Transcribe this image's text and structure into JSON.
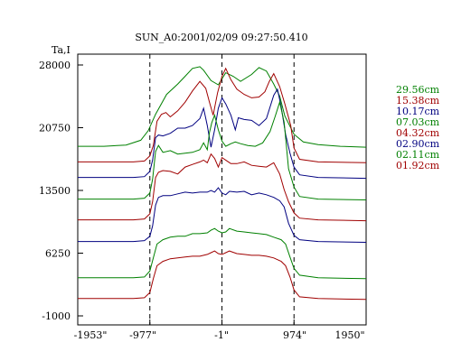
{
  "chart_data": {
    "type": "line",
    "title": "SUN_A0:2001/02/09 09:27:50.410",
    "ylabel": "Ta,I",
    "xlabel": "",
    "xlim": [
      -1953,
      1950
    ],
    "ylim": [
      -1000,
      28000
    ],
    "y_ticks": [
      {
        "value": 28000,
        "label": "28000"
      },
      {
        "value": 20750,
        "label": "20750"
      },
      {
        "value": 13500,
        "label": "13500"
      },
      {
        "value": 6250,
        "label": "6250"
      },
      {
        "value": -1000,
        "label": "-1000"
      }
    ],
    "x_ticks": [
      {
        "value": -1953,
        "label": "-1953\""
      },
      {
        "value": -977,
        "label": "-977\""
      },
      {
        "value": -1,
        "label": "-1\""
      },
      {
        "value": 974,
        "label": "974\""
      },
      {
        "value": 1950,
        "label": "1950\""
      }
    ],
    "vlines": [
      -977,
      -1,
      974
    ],
    "grid": false,
    "legend_position": "right",
    "series": [
      {
        "name": "29.56cm",
        "color": "#008000",
        "x": [
          -1953,
          -1600,
          -1300,
          -1100,
          -1000,
          -900,
          -750,
          -600,
          -500,
          -400,
          -300,
          -250,
          -150,
          -50,
          50,
          150,
          250,
          400,
          500,
          600,
          700,
          780,
          850,
          974,
          1100,
          1300,
          1600,
          1950
        ],
        "y": [
          18600,
          18600,
          18750,
          19300,
          20400,
          22300,
          24600,
          25800,
          26700,
          27600,
          27800,
          27400,
          26200,
          25700,
          27100,
          26700,
          26100,
          26900,
          27700,
          27300,
          25800,
          24400,
          22100,
          20000,
          19100,
          18800,
          18600,
          18500
        ]
      },
      {
        "name": "15.38cm",
        "color": "#a00000",
        "x": [
          -1953,
          -1200,
          -1050,
          -977,
          -930,
          -880,
          -820,
          -760,
          -700,
          -600,
          -500,
          -400,
          -300,
          -220,
          -170,
          -120,
          -60,
          0,
          50,
          120,
          200,
          300,
          400,
          500,
          580,
          640,
          700,
          780,
          850,
          930,
          974,
          1050,
          1300,
          1950
        ],
        "y": [
          16800,
          16800,
          16900,
          17500,
          18700,
          21500,
          22300,
          22500,
          22000,
          22700,
          23700,
          25000,
          26100,
          25300,
          23700,
          22200,
          24800,
          26700,
          27600,
          26300,
          25200,
          24600,
          24200,
          24300,
          24900,
          26100,
          27000,
          25500,
          23500,
          21000,
          18400,
          17100,
          16800,
          16700
        ]
      },
      {
        "name": "10.17cm",
        "color": "#000080",
        "x": [
          -1953,
          -1200,
          -1050,
          -977,
          -940,
          -900,
          -860,
          -800,
          -700,
          -600,
          -500,
          -400,
          -300,
          -250,
          -200,
          -150,
          -100,
          -50,
          0,
          50,
          120,
          180,
          220,
          300,
          400,
          500,
          600,
          700,
          750,
          800,
          860,
          920,
          974,
          1050,
          1300,
          1950
        ],
        "y": [
          15000,
          15000,
          15100,
          15700,
          17000,
          19600,
          19900,
          19800,
          20100,
          20700,
          20700,
          21000,
          21800,
          23000,
          21000,
          18500,
          20500,
          23000,
          24200,
          23500,
          22200,
          20500,
          21900,
          21700,
          21600,
          21000,
          21800,
          24500,
          25200,
          23200,
          20000,
          17800,
          16200,
          15300,
          15000,
          14900
        ]
      },
      {
        "name": "07.03cm",
        "color": "#008000",
        "x": [
          -1953,
          -1200,
          -1050,
          -977,
          -940,
          -900,
          -860,
          -800,
          -700,
          -600,
          -500,
          -400,
          -300,
          -250,
          -200,
          -170,
          -140,
          -100,
          -50,
          0,
          50,
          120,
          180,
          250,
          350,
          450,
          550,
          650,
          720,
          780,
          840,
          900,
          974,
          1050,
          1300,
          1950
        ],
        "y": [
          12500,
          12500,
          12600,
          13200,
          14800,
          18000,
          18700,
          17900,
          18100,
          17700,
          17800,
          17900,
          18200,
          19000,
          18200,
          20200,
          21300,
          22200,
          20500,
          19200,
          18600,
          18900,
          19100,
          18900,
          18700,
          18600,
          19000,
          20300,
          22100,
          23700,
          21400,
          16000,
          13900,
          12800,
          12500,
          12400
        ]
      },
      {
        "name": "04.32cm",
        "color": "#a00000",
        "x": [
          -1953,
          -1200,
          -1050,
          -977,
          -940,
          -900,
          -860,
          -800,
          -700,
          -600,
          -500,
          -400,
          -300,
          -250,
          -200,
          -150,
          -100,
          -50,
          0,
          50,
          120,
          200,
          300,
          400,
          500,
          600,
          700,
          780,
          840,
          900,
          974,
          1050,
          1300,
          1950
        ],
        "y": [
          10100,
          10100,
          10200,
          10800,
          12200,
          15000,
          15600,
          15800,
          15700,
          15400,
          16200,
          16500,
          16800,
          17000,
          16700,
          17700,
          17200,
          16200,
          17300,
          17000,
          16600,
          16600,
          16800,
          16400,
          16300,
          16200,
          16700,
          15400,
          13600,
          12200,
          10900,
          10300,
          10100,
          10000
        ]
      },
      {
        "name": "02.90cm",
        "color": "#000080",
        "x": [
          -1953,
          -1200,
          -1050,
          -977,
          -940,
          -900,
          -860,
          -800,
          -700,
          -600,
          -500,
          -400,
          -300,
          -200,
          -150,
          -100,
          -50,
          0,
          50,
          100,
          200,
          300,
          400,
          500,
          600,
          700,
          780,
          840,
          900,
          974,
          1050,
          1300,
          1950
        ],
        "y": [
          7600,
          7600,
          7700,
          8200,
          9400,
          11800,
          12700,
          12900,
          12900,
          13100,
          13300,
          13200,
          13300,
          13300,
          13500,
          13300,
          13800,
          13200,
          13000,
          13400,
          13300,
          13400,
          13000,
          13200,
          13000,
          12700,
          12300,
          11600,
          9700,
          8300,
          7800,
          7600,
          7500
        ]
      },
      {
        "name": "02.11cm",
        "color": "#008000",
        "x": [
          -1953,
          -1200,
          -1050,
          -977,
          -930,
          -880,
          -800,
          -700,
          -600,
          -500,
          -400,
          -300,
          -200,
          -150,
          -100,
          -50,
          0,
          50,
          100,
          200,
          300,
          400,
          500,
          600,
          700,
          800,
          860,
          920,
          974,
          1050,
          1300,
          1950
        ],
        "y": [
          3400,
          3400,
          3500,
          4200,
          5700,
          7300,
          7800,
          8100,
          8200,
          8200,
          8500,
          8500,
          8600,
          8900,
          9100,
          8800,
          8600,
          8700,
          9100,
          8800,
          8700,
          8600,
          8500,
          8400,
          8100,
          7800,
          7300,
          5800,
          4500,
          3700,
          3400,
          3300
        ]
      },
      {
        "name": "01.92cm",
        "color": "#a00000",
        "x": [
          -1953,
          -1200,
          -1050,
          -977,
          -930,
          -880,
          -800,
          -700,
          -600,
          -500,
          -400,
          -300,
          -200,
          -150,
          -100,
          -50,
          0,
          50,
          100,
          200,
          300,
          400,
          500,
          600,
          700,
          800,
          860,
          920,
          974,
          1050,
          1300,
          1950
        ],
        "y": [
          1000,
          1000,
          1100,
          1700,
          3300,
          4800,
          5300,
          5600,
          5700,
          5800,
          5900,
          5900,
          6100,
          6300,
          6500,
          6200,
          6100,
          6300,
          6500,
          6200,
          6100,
          6000,
          6000,
          5900,
          5700,
          5300,
          4800,
          3500,
          2000,
          1200,
          1000,
          900
        ]
      }
    ]
  }
}
